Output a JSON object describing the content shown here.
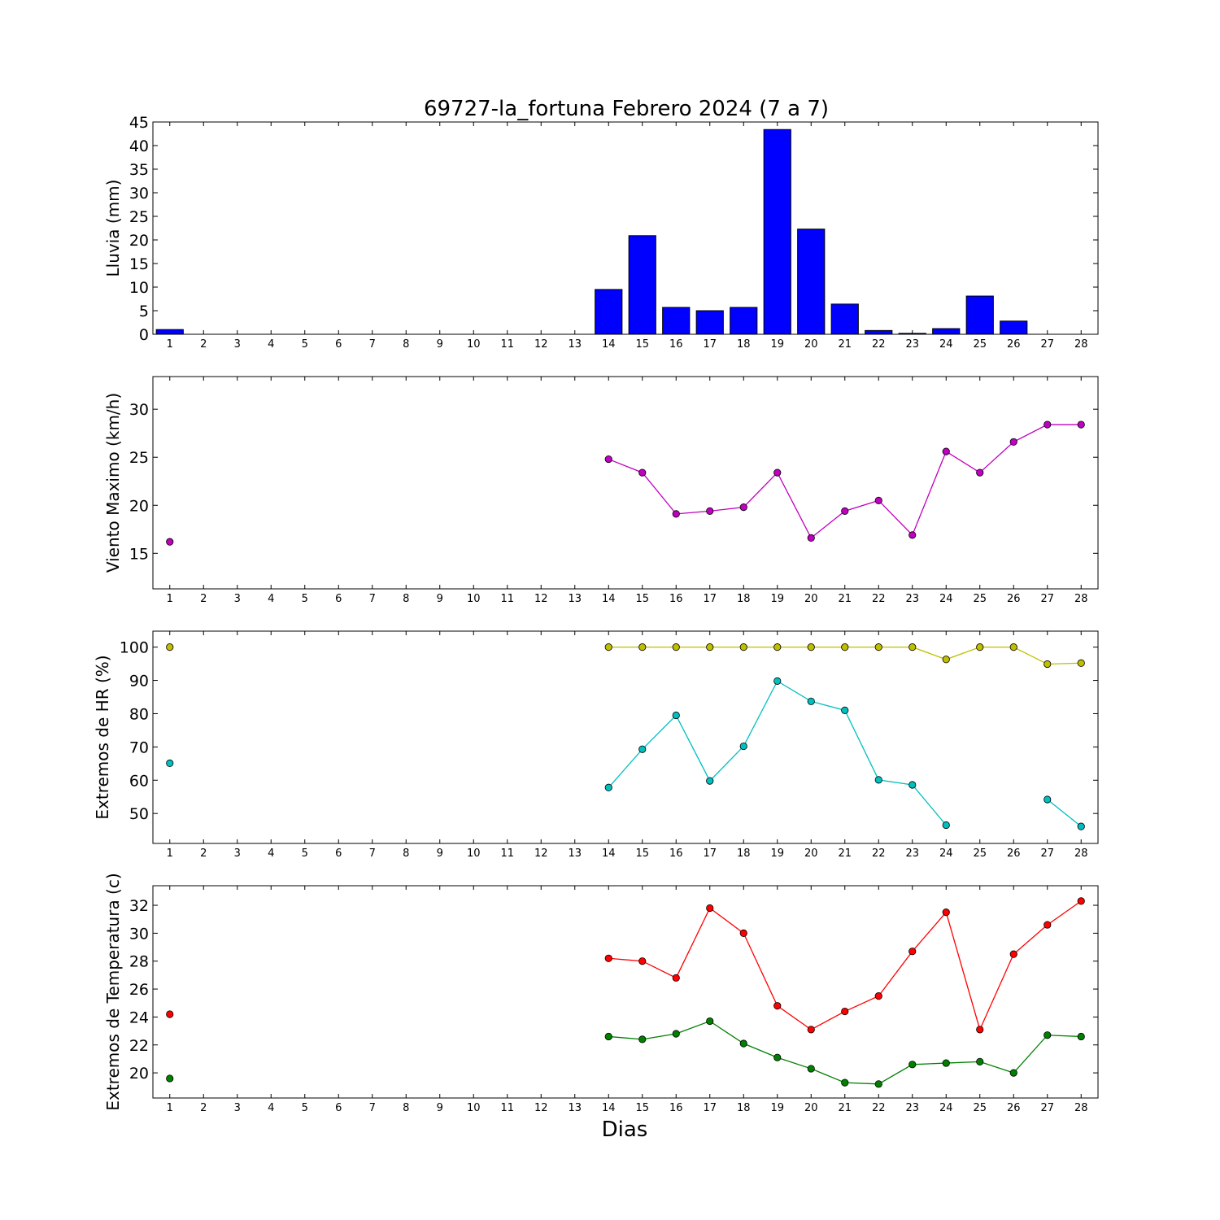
{
  "chart_data": [
    {
      "type": "bar",
      "title": "69727-la_fortuna Febrero 2024  (7 a 7)",
      "ylabel": "Lluvia (mm)",
      "x": [
        1,
        2,
        3,
        4,
        5,
        6,
        7,
        8,
        9,
        10,
        11,
        12,
        13,
        14,
        15,
        16,
        17,
        18,
        19,
        20,
        21,
        22,
        23,
        24,
        25,
        26,
        27,
        28
      ],
      "values": [
        1.0,
        0,
        0,
        0,
        0,
        0,
        0,
        0,
        0,
        0,
        0,
        0,
        0,
        9.5,
        20.9,
        5.7,
        5.0,
        5.7,
        43.4,
        22.3,
        6.4,
        0.8,
        0.2,
        1.2,
        8.1,
        2.8,
        0,
        0
      ],
      "ylim": [
        0,
        45
      ],
      "yticks": [
        0,
        5,
        10,
        15,
        20,
        25,
        30,
        35,
        40,
        45
      ],
      "colors": {
        "bar": "#0000ff"
      }
    },
    {
      "type": "line",
      "ylabel": "Viento Maximo (km/h)",
      "x": [
        1,
        2,
        3,
        4,
        5,
        6,
        7,
        8,
        9,
        10,
        11,
        12,
        13,
        14,
        15,
        16,
        17,
        18,
        19,
        20,
        21,
        22,
        23,
        24,
        25,
        26,
        27,
        28
      ],
      "series": [
        {
          "color": "#bf00bf",
          "values": [
            16.2,
            null,
            null,
            null,
            null,
            null,
            null,
            null,
            null,
            null,
            null,
            null,
            null,
            24.8,
            23.4,
            19.1,
            19.4,
            19.8,
            23.4,
            16.6,
            19.4,
            20.5,
            16.9,
            25.6,
            23.4,
            26.6,
            28.4,
            28.4
          ]
        }
      ],
      "ylim": [
        11.3,
        33.4
      ],
      "yticks": [
        15,
        20,
        25,
        30
      ]
    },
    {
      "type": "line",
      "ylabel": "Extremos de HR (%)",
      "x": [
        1,
        2,
        3,
        4,
        5,
        6,
        7,
        8,
        9,
        10,
        11,
        12,
        13,
        14,
        15,
        16,
        17,
        18,
        19,
        20,
        21,
        22,
        23,
        24,
        25,
        26,
        27,
        28
      ],
      "series": [
        {
          "color": "#bfbf00",
          "values": [
            100,
            null,
            null,
            null,
            null,
            null,
            null,
            null,
            null,
            null,
            null,
            null,
            null,
            100,
            100,
            100,
            100,
            100,
            100,
            100,
            100,
            100,
            100,
            96.3,
            100,
            100,
            94.9,
            95.2
          ]
        },
        {
          "color": "#00bfbf",
          "values": [
            65.1,
            null,
            null,
            null,
            null,
            null,
            null,
            null,
            null,
            null,
            null,
            null,
            null,
            57.8,
            69.3,
            79.5,
            59.8,
            70.2,
            89.8,
            83.7,
            81.0,
            60.1,
            58.6,
            46.5,
            null,
            null,
            54.2,
            46.1
          ]
        }
      ],
      "ylim": [
        41,
        104.8
      ],
      "yticks": [
        50,
        60,
        70,
        80,
        90,
        100
      ]
    },
    {
      "type": "line",
      "ylabel": "Extremos de Temperatura (c)",
      "xlabel": "Dias",
      "x": [
        1,
        2,
        3,
        4,
        5,
        6,
        7,
        8,
        9,
        10,
        11,
        12,
        13,
        14,
        15,
        16,
        17,
        18,
        19,
        20,
        21,
        22,
        23,
        24,
        25,
        26,
        27,
        28
      ],
      "series": [
        {
          "color": "#ff0000",
          "values": [
            24.2,
            null,
            null,
            null,
            null,
            null,
            null,
            null,
            null,
            null,
            null,
            null,
            null,
            28.2,
            28.0,
            26.8,
            31.8,
            30.0,
            24.8,
            23.1,
            24.4,
            25.5,
            28.7,
            31.5,
            23.1,
            28.5,
            30.6,
            32.3
          ]
        },
        {
          "color": "#008000",
          "values": [
            19.6,
            null,
            null,
            null,
            null,
            null,
            null,
            null,
            null,
            null,
            null,
            null,
            null,
            22.6,
            22.4,
            22.8,
            23.7,
            22.1,
            21.1,
            20.3,
            19.3,
            19.2,
            20.6,
            20.7,
            20.8,
            20.0,
            22.7,
            22.6
          ]
        }
      ],
      "ylim": [
        18.2,
        33.4
      ],
      "yticks": [
        20,
        22,
        24,
        26,
        28,
        30,
        32
      ]
    }
  ]
}
